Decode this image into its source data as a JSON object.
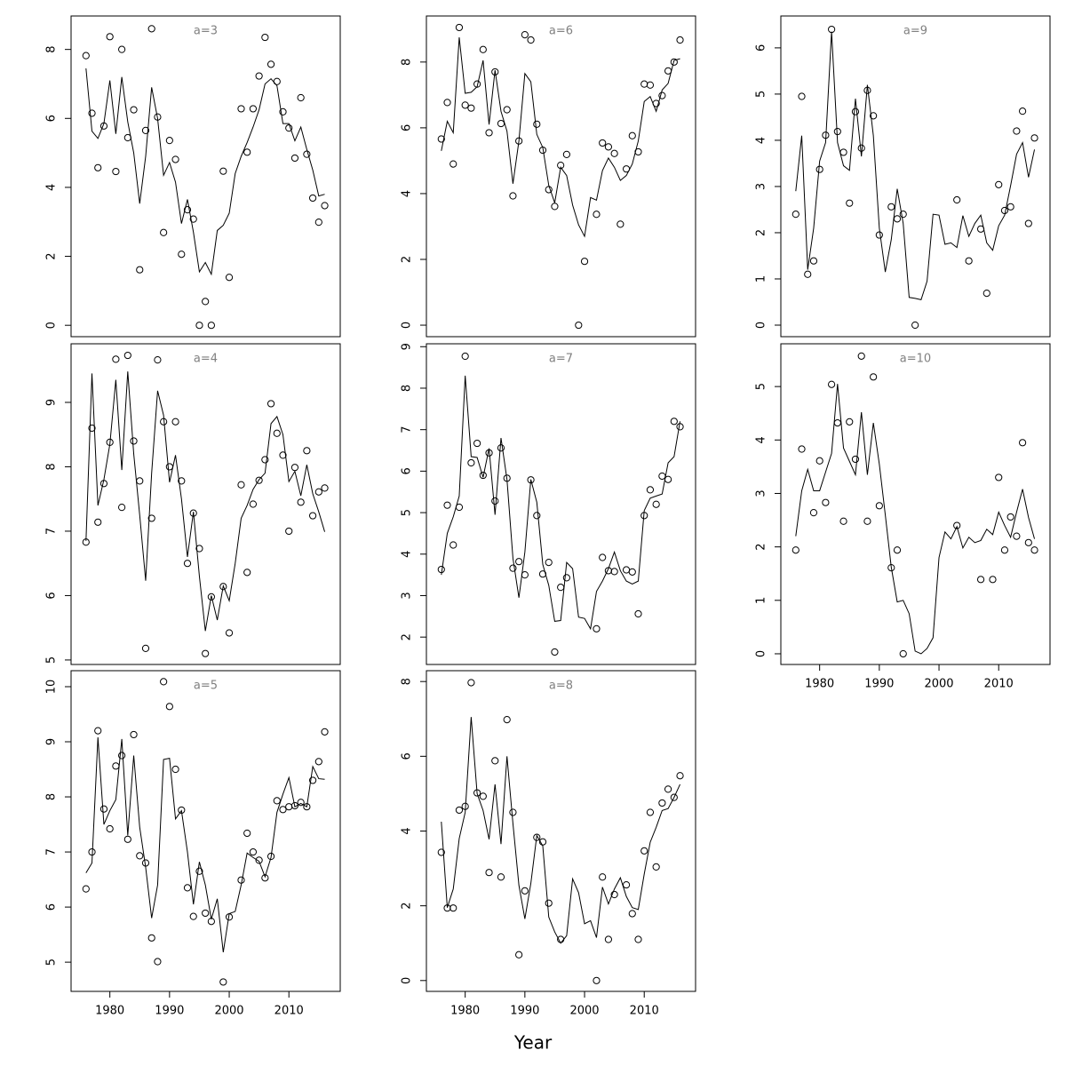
{
  "xlabel": "Year",
  "chart_data": [
    {
      "type": "line",
      "title": "a=3",
      "xlim": [
        1973.5,
        2018.6
      ],
      "ylim": [
        -0.33,
        8.97
      ],
      "yticks": [
        0,
        2,
        4,
        6,
        8
      ],
      "x": [
        1976,
        1977,
        1978,
        1979,
        1980,
        1981,
        1982,
        1983,
        1984,
        1985,
        1986,
        1987,
        1988,
        1989,
        1990,
        1991,
        1992,
        1993,
        1994,
        1995,
        1996,
        1997,
        1998,
        1999,
        2000,
        2001,
        2002,
        2003,
        2004,
        2005,
        2006,
        2007,
        2008,
        2009,
        2010,
        2011,
        2012,
        2013,
        2014,
        2015,
        2016
      ],
      "points": [
        7.82,
        6.15,
        4.57,
        5.78,
        8.37,
        4.46,
        8.0,
        5.44,
        6.25,
        1.61,
        5.65,
        8.6,
        6.04,
        2.69,
        5.36,
        4.81,
        2.06,
        3.35,
        3.08,
        0,
        0.69,
        0,
        null,
        4.47,
        1.39,
        null,
        6.28,
        5.02,
        6.28,
        7.23,
        8.35,
        7.57,
        7.07,
        6.19,
        5.72,
        4.85,
        6.6,
        4.96,
        3.69,
        2.99,
        3.47
      ],
      "values": [
        7.45,
        5.63,
        5.42,
        5.85,
        7.1,
        5.55,
        7.2,
        5.9,
        5.0,
        3.53,
        4.9,
        6.9,
        6.0,
        4.35,
        4.72,
        4.15,
        2.95,
        3.65,
        2.7,
        1.55,
        1.82,
        1.48,
        2.75,
        2.9,
        3.25,
        4.4,
        4.9,
        5.3,
        5.75,
        6.25,
        7.0,
        7.15,
        6.95,
        5.85,
        5.85,
        5.35,
        5.75,
        5.1,
        4.5,
        3.75,
        3.8
      ]
    },
    {
      "type": "line",
      "title": "a=4",
      "xlim": [
        1973.5,
        2018.6
      ],
      "ylim": [
        4.93,
        9.91
      ],
      "yticks": [
        5,
        6,
        7,
        8,
        9
      ],
      "x": [
        1976,
        1977,
        1978,
        1979,
        1980,
        1981,
        1982,
        1983,
        1984,
        1985,
        1986,
        1987,
        1988,
        1989,
        1990,
        1991,
        1992,
        1993,
        1994,
        1995,
        1996,
        1997,
        1998,
        1999,
        2000,
        2001,
        2002,
        2003,
        2004,
        2005,
        2006,
        2007,
        2008,
        2009,
        2010,
        2011,
        2012,
        2013,
        2014,
        2015,
        2016
      ],
      "points": [
        6.83,
        8.6,
        7.14,
        7.74,
        8.38,
        9.67,
        7.37,
        9.73,
        8.4,
        7.78,
        5.18,
        7.2,
        9.66,
        8.7,
        8.0,
        8.7,
        7.78,
        6.5,
        7.28,
        6.73,
        5.1,
        5.98,
        null,
        6.14,
        5.42,
        null,
        7.72,
        6.36,
        7.42,
        7.79,
        8.11,
        8.98,
        8.52,
        8.18,
        7.0,
        7.99,
        7.45,
        8.25,
        7.24,
        7.61,
        7.67
      ],
      "values": [
        6.85,
        9.45,
        7.4,
        7.8,
        8.35,
        9.35,
        7.95,
        9.48,
        8.2,
        7.25,
        6.23,
        7.9,
        9.18,
        8.8,
        7.76,
        8.18,
        7.5,
        6.6,
        7.3,
        6.3,
        5.45,
        6.0,
        5.62,
        6.15,
        5.92,
        6.5,
        7.2,
        7.4,
        7.65,
        7.8,
        7.9,
        8.67,
        8.78,
        8.5,
        7.77,
        7.93,
        7.55,
        8.03,
        7.58,
        7.3,
        6.99
      ]
    },
    {
      "type": "line",
      "title": "a=5",
      "xlim": [
        1973.5,
        2018.6
      ],
      "ylim": [
        4.47,
        10.29
      ],
      "yticks": [
        5,
        6,
        7,
        8,
        9,
        10
      ],
      "xticks": [
        1980,
        1990,
        2000,
        2010
      ],
      "x": [
        1976,
        1977,
        1978,
        1979,
        1980,
        1981,
        1982,
        1983,
        1984,
        1985,
        1986,
        1987,
        1988,
        1989,
        1990,
        1991,
        1992,
        1993,
        1994,
        1995,
        1996,
        1997,
        1998,
        1999,
        2000,
        2001,
        2002,
        2003,
        2004,
        2005,
        2006,
        2007,
        2008,
        2009,
        2010,
        2011,
        2012,
        2013,
        2014,
        2015,
        2016
      ],
      "points": [
        6.33,
        7.0,
        9.2,
        7.78,
        7.42,
        8.56,
        8.75,
        7.23,
        9.13,
        6.93,
        6.8,
        5.44,
        5.01,
        10.09,
        9.64,
        8.5,
        7.76,
        6.35,
        5.83,
        6.65,
        5.89,
        5.74,
        null,
        4.64,
        5.82,
        null,
        6.49,
        7.34,
        7.0,
        6.85,
        6.53,
        6.92,
        7.93,
        7.77,
        7.82,
        7.84,
        7.9,
        7.82,
        8.3,
        8.64,
        9.18
      ],
      "values": [
        6.62,
        6.8,
        9.08,
        7.5,
        7.75,
        7.95,
        9.05,
        7.3,
        8.75,
        7.45,
        6.72,
        5.8,
        6.4,
        8.68,
        8.7,
        7.6,
        7.75,
        7.0,
        6.05,
        6.82,
        6.4,
        5.78,
        6.15,
        5.18,
        5.88,
        5.92,
        6.4,
        6.98,
        6.9,
        6.83,
        6.55,
        6.9,
        7.72,
        8.05,
        8.35,
        7.82,
        7.88,
        7.82,
        8.55,
        8.33,
        8.32
      ]
    },
    {
      "type": "line",
      "title": "a=6",
      "xlim": [
        1973.5,
        2018.6
      ],
      "ylim": [
        -0.35,
        9.4
      ],
      "yticks": [
        0,
        2,
        4,
        6,
        8
      ],
      "x": [
        1976,
        1977,
        1978,
        1979,
        1980,
        1981,
        1982,
        1983,
        1984,
        1985,
        1986,
        1987,
        1988,
        1989,
        1990,
        1991,
        1992,
        1993,
        1994,
        1995,
        1996,
        1997,
        1998,
        1999,
        2000,
        2001,
        2002,
        2003,
        2004,
        2005,
        2006,
        2007,
        2008,
        2009,
        2010,
        2011,
        2012,
        2013,
        2014,
        2015,
        2016
      ],
      "points": [
        5.66,
        6.77,
        4.9,
        9.05,
        6.69,
        6.6,
        7.33,
        8.38,
        5.85,
        7.7,
        6.13,
        6.55,
        3.93,
        5.6,
        8.83,
        8.67,
        6.11,
        5.32,
        4.12,
        3.61,
        4.86,
        5.19,
        null,
        0,
        1.94,
        null,
        3.37,
        5.54,
        5.42,
        5.22,
        3.07,
        4.75,
        5.76,
        5.27,
        7.33,
        7.3,
        6.74,
        6.98,
        7.73,
        8.0,
        8.67
      ],
      "values": [
        5.3,
        6.2,
        5.85,
        8.75,
        7.05,
        7.08,
        7.25,
        8.05,
        6.1,
        7.75,
        6.5,
        5.9,
        4.3,
        5.6,
        7.65,
        7.4,
        5.8,
        5.4,
        4.25,
        3.72,
        4.8,
        4.55,
        3.65,
        3.05,
        2.7,
        3.88,
        3.8,
        4.7,
        5.08,
        4.8,
        4.4,
        4.55,
        4.9,
        5.6,
        6.8,
        6.95,
        6.5,
        7.15,
        7.35,
        8.05,
        8.1
      ]
    },
    {
      "type": "line",
      "title": "a=7",
      "xlim": [
        1973.5,
        2018.6
      ],
      "ylim": [
        1.34,
        9.07
      ],
      "yticks": [
        2,
        3,
        4,
        5,
        6,
        7,
        8,
        9
      ],
      "x": [
        1976,
        1977,
        1978,
        1979,
        1980,
        1981,
        1982,
        1983,
        1984,
        1985,
        1986,
        1987,
        1988,
        1989,
        1990,
        1991,
        1992,
        1993,
        1994,
        1995,
        1996,
        1997,
        1998,
        1999,
        2000,
        2001,
        2002,
        2003,
        2004,
        2005,
        2006,
        2007,
        2008,
        2009,
        2010,
        2011,
        2012,
        2013,
        2014,
        2015,
        2016
      ],
      "points": [
        3.63,
        5.18,
        4.22,
        5.13,
        8.77,
        6.2,
        6.67,
        5.9,
        6.44,
        5.28,
        6.56,
        5.83,
        3.66,
        3.82,
        3.5,
        5.79,
        4.93,
        3.52,
        3.8,
        1.64,
        3.2,
        3.43,
        null,
        null,
        null,
        null,
        2.2,
        3.92,
        3.6,
        3.58,
        null,
        3.62,
        3.57,
        2.56,
        4.93,
        5.55,
        5.2,
        5.88,
        5.8,
        7.2,
        7.07
      ],
      "values": [
        3.5,
        4.5,
        4.9,
        5.4,
        8.3,
        6.35,
        6.33,
        5.85,
        6.55,
        4.95,
        6.8,
        5.8,
        3.9,
        2.95,
        4.05,
        5.8,
        5.25,
        3.75,
        3.25,
        2.38,
        2.4,
        3.8,
        3.65,
        2.48,
        2.45,
        2.2,
        3.1,
        3.35,
        3.65,
        4.05,
        3.6,
        3.35,
        3.28,
        3.35,
        5.05,
        5.35,
        5.4,
        5.45,
        6.2,
        6.35,
        7.2
      ]
    },
    {
      "type": "line",
      "title": "a=8",
      "xlim": [
        1973.5,
        2018.6
      ],
      "ylim": [
        -0.29,
        8.29
      ],
      "yticks": [
        0,
        2,
        4,
        6,
        8
      ],
      "xticks": [
        1980,
        1990,
        2000,
        2010
      ],
      "x": [
        1976,
        1977,
        1978,
        1979,
        1980,
        1981,
        1982,
        1983,
        1984,
        1985,
        1986,
        1987,
        1988,
        1989,
        1990,
        1991,
        1992,
        1993,
        1994,
        1995,
        1996,
        1997,
        1998,
        1999,
        2000,
        2001,
        2002,
        2003,
        2004,
        2005,
        2006,
        2007,
        2008,
        2009,
        2010,
        2011,
        2012,
        2013,
        2014,
        2015,
        2016
      ],
      "points": [
        3.43,
        1.94,
        1.94,
        4.56,
        4.66,
        7.97,
        5.02,
        4.93,
        2.89,
        5.88,
        2.77,
        6.98,
        4.5,
        0.69,
        2.4,
        null,
        3.83,
        3.71,
        2.07,
        null,
        1.1,
        null,
        null,
        null,
        null,
        null,
        0,
        2.77,
        1.1,
        2.3,
        null,
        2.56,
        1.79,
        1.1,
        3.47,
        4.5,
        3.04,
        4.75,
        5.12,
        4.9,
        5.48
      ],
      "values": [
        4.25,
        1.95,
        2.45,
        3.8,
        4.5,
        7.05,
        5.0,
        4.55,
        3.78,
        5.25,
        3.65,
        6.0,
        4.2,
        2.55,
        1.65,
        2.6,
        3.88,
        3.6,
        1.7,
        1.3,
        1.0,
        1.2,
        2.72,
        2.35,
        1.52,
        1.6,
        1.15,
        2.5,
        2.05,
        2.45,
        2.75,
        2.25,
        1.95,
        1.9,
        2.85,
        3.7,
        4.1,
        4.55,
        4.6,
        4.9,
        5.25
      ]
    },
    {
      "type": "line",
      "title": "a=9",
      "xlim": [
        1973.5,
        2018.6
      ],
      "ylim": [
        -0.25,
        6.69
      ],
      "yticks": [
        0,
        1,
        2,
        3,
        4,
        5,
        6
      ],
      "x": [
        1976,
        1977,
        1978,
        1979,
        1980,
        1981,
        1982,
        1983,
        1984,
        1985,
        1986,
        1987,
        1988,
        1989,
        1990,
        1991,
        1992,
        1993,
        1994,
        1995,
        1996,
        1997,
        1998,
        1999,
        2000,
        2001,
        2002,
        2003,
        2004,
        2005,
        2006,
        2007,
        2008,
        2009,
        2010,
        2011,
        2012,
        2013,
        2014,
        2015,
        2016
      ],
      "points": [
        2.4,
        4.95,
        1.1,
        1.39,
        3.37,
        4.11,
        6.4,
        4.19,
        3.74,
        2.64,
        4.62,
        3.83,
        5.08,
        4.53,
        1.95,
        null,
        2.56,
        2.3,
        2.4,
        null,
        0,
        null,
        null,
        null,
        null,
        null,
        null,
        2.71,
        null,
        1.39,
        null,
        2.08,
        0.69,
        null,
        3.04,
        2.48,
        2.56,
        4.2,
        4.63,
        2.2,
        4.05
      ],
      "values": [
        2.9,
        4.1,
        1.2,
        2.1,
        3.55,
        3.95,
        6.35,
        3.95,
        3.45,
        3.35,
        4.9,
        3.65,
        5.2,
        4.1,
        2.1,
        1.15,
        1.85,
        2.95,
        2.2,
        0.6,
        0.58,
        0.55,
        0.95,
        2.4,
        2.38,
        1.75,
        1.78,
        1.68,
        2.37,
        1.92,
        2.2,
        2.38,
        1.78,
        1.62,
        2.15,
        2.38,
        3.02,
        3.7,
        3.95,
        3.2,
        3.8
      ]
    },
    {
      "type": "line",
      "title": "a=10",
      "xlim": [
        1973.5,
        2018.6
      ],
      "ylim": [
        -0.2,
        5.8
      ],
      "yticks": [
        0,
        1,
        2,
        3,
        4,
        5
      ],
      "xticks": [
        1980,
        1990,
        2000,
        2010
      ],
      "x": [
        1976,
        1977,
        1978,
        1979,
        1980,
        1981,
        1982,
        1983,
        1984,
        1985,
        1986,
        1987,
        1988,
        1989,
        1990,
        1991,
        1992,
        1993,
        1994,
        1995,
        1996,
        1997,
        1998,
        1999,
        2000,
        2001,
        2002,
        2003,
        2004,
        2005,
        2006,
        2007,
        2008,
        2009,
        2010,
        2011,
        2012,
        2013,
        2014,
        2015,
        2016
      ],
      "points": [
        1.94,
        3.83,
        null,
        2.64,
        3.61,
        2.83,
        5.04,
        4.32,
        2.48,
        4.34,
        3.64,
        5.57,
        2.48,
        5.18,
        2.77,
        null,
        1.61,
        1.94,
        0,
        null,
        null,
        null,
        null,
        null,
        null,
        null,
        null,
        2.4,
        null,
        null,
        null,
        1.39,
        null,
        1.39,
        3.3,
        1.94,
        2.56,
        2.2,
        3.95,
        2.08,
        1.94
      ],
      "values": [
        2.2,
        3.05,
        3.45,
        3.05,
        3.05,
        3.4,
        3.75,
        5.05,
        3.85,
        3.6,
        3.35,
        4.52,
        3.35,
        4.32,
        3.55,
        2.6,
        1.62,
        0.97,
        1.0,
        0.75,
        0.05,
        0.0,
        0.1,
        0.3,
        1.8,
        2.28,
        2.15,
        2.38,
        1.98,
        2.18,
        2.08,
        2.12,
        2.33,
        2.23,
        2.65,
        2.4,
        2.18,
        2.65,
        3.08,
        2.55,
        2.15
      ]
    }
  ]
}
